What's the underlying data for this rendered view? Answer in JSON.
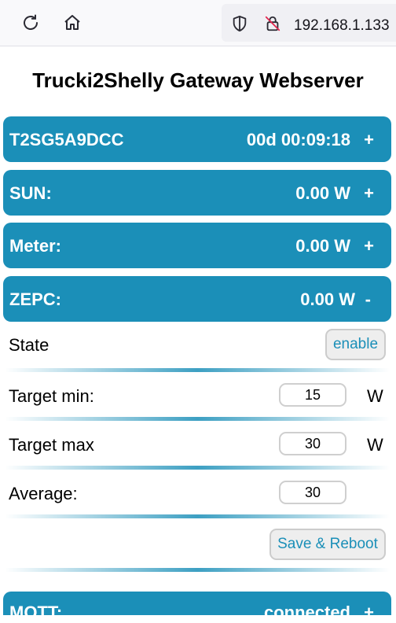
{
  "browser": {
    "url": "192.168.1.133",
    "icons": [
      "reload-icon",
      "home-icon",
      "shield-icon",
      "insecure-lock-icon"
    ]
  },
  "page": {
    "title": "Trucki2Shelly Gateway Webserver"
  },
  "bars": {
    "device": {
      "label": "T2SG5A9DCC",
      "value": "00d 00:09:18",
      "toggle": "+"
    },
    "sun": {
      "label": "SUN:",
      "value": "0.00 W",
      "toggle": "+"
    },
    "meter": {
      "label": "Meter:",
      "value": "0.00 W",
      "toggle": "+"
    },
    "zepc": {
      "label": "ZEPC:",
      "value": "0.00 W",
      "toggle": "-"
    },
    "mqtt": {
      "label": "MQTT:",
      "value": "connected",
      "toggle": "+"
    }
  },
  "zepc_settings": {
    "state_label": "State",
    "state_button": "enable",
    "target_min_label": "Target min:",
    "target_min_value": "15",
    "target_min_unit": "W",
    "target_max_label": "Target max",
    "target_max_value": "30",
    "target_max_unit": "W",
    "average_label": "Average:",
    "average_value": "30",
    "save_button": "Save & Reboot"
  },
  "colors": {
    "accent": "#1b8fb8",
    "button_bg": "#eeeeee"
  }
}
